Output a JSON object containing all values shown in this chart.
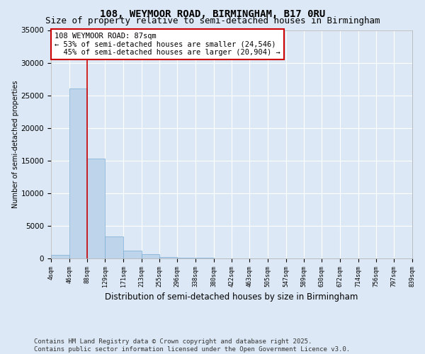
{
  "title": "108, WEYMOOR ROAD, BIRMINGHAM, B17 0RU",
  "subtitle": "Size of property relative to semi-detached houses in Birmingham",
  "xlabel": "Distribution of semi-detached houses by size in Birmingham",
  "ylabel": "Number of semi-detached properties",
  "bin_edges": [
    4,
    46,
    88,
    129,
    171,
    213,
    255,
    296,
    338,
    380,
    422,
    463,
    505,
    547,
    589,
    630,
    672,
    714,
    756,
    797,
    839
  ],
  "bar_heights": [
    500,
    26000,
    15300,
    3400,
    1200,
    600,
    200,
    100,
    60,
    30,
    20,
    15,
    10,
    8,
    5,
    3,
    2,
    1,
    1,
    0
  ],
  "bar_color": "#bdd4ea",
  "bar_edgecolor": "#7aadd4",
  "property_size": 87,
  "red_line_color": "#cc0000",
  "annotation_line1": "108 WEYMOOR ROAD: 87sqm",
  "annotation_line2": "← 53% of semi-detached houses are smaller (24,546)",
  "annotation_line3": "  45% of semi-detached houses are larger (20,904) →",
  "annotation_box_color": "#ffffff",
  "annotation_box_edgecolor": "#cc0000",
  "ylim": [
    0,
    35000
  ],
  "yticks": [
    0,
    5000,
    10000,
    15000,
    20000,
    25000,
    30000,
    35000
  ],
  "bg_color": "#dce8f5",
  "plot_bg_color": "#dce8f5",
  "grid_color": "#ffffff",
  "footer_line1": "Contains HM Land Registry data © Crown copyright and database right 2025.",
  "footer_line2": "Contains public sector information licensed under the Open Government Licence v3.0.",
  "title_fontsize": 10,
  "subtitle_fontsize": 9,
  "annotation_fontsize": 7.5,
  "footer_fontsize": 6.5,
  "ylabel_fontsize": 7,
  "xlabel_fontsize": 8.5,
  "ytick_fontsize": 7.5,
  "xtick_fontsize": 6
}
